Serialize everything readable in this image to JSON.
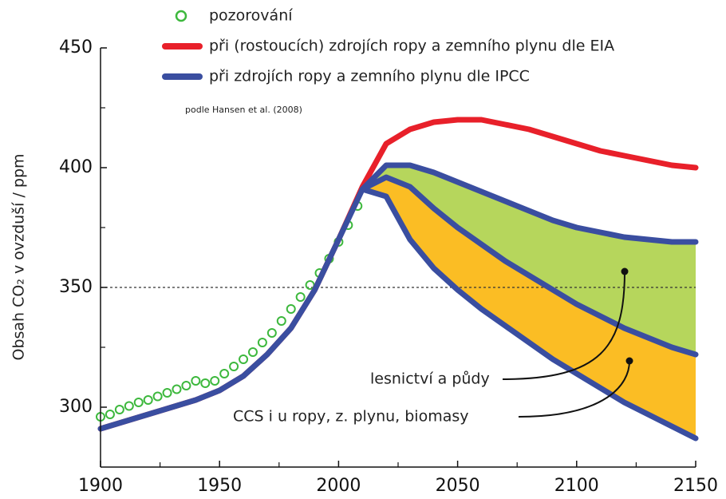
{
  "chart_data": {
    "type": "line",
    "note": "podle Hansen et al. (2008)",
    "ylabel": "Obsah CO₂ v ovzduší / ppm",
    "xlim": [
      1900,
      2150
    ],
    "xticks": [
      1900,
      1950,
      2000,
      2050,
      2100,
      2150
    ],
    "xminor_ticks": [
      1925,
      1975,
      2025,
      2075,
      2125
    ],
    "ylim": [
      275,
      450
    ],
    "yticks": [
      300,
      350,
      400,
      450
    ],
    "yminor_ticks": [
      325,
      375,
      425
    ],
    "hline": 350,
    "observations": {
      "name": "pozorování",
      "color": "#3db83d",
      "x": [
        1900,
        1904,
        1908,
        1912,
        1916,
        1920,
        1924,
        1928,
        1932,
        1936,
        1940,
        1944,
        1948,
        1952,
        1956,
        1960,
        1964,
        1968,
        1972,
        1976,
        1980,
        1984,
        1988,
        1992,
        1996,
        2000,
        2004,
        2008
      ],
      "values": [
        296,
        297,
        299,
        300.5,
        302,
        303,
        304.5,
        306,
        307.5,
        309,
        311,
        310,
        311,
        314,
        317,
        320,
        323,
        327,
        331,
        336,
        341,
        346,
        351,
        356,
        362,
        369,
        376,
        384
      ]
    },
    "x": [
      1900,
      1910,
      1920,
      1930,
      1940,
      1950,
      1960,
      1970,
      1980,
      1990,
      2000,
      2010,
      2020,
      2030,
      2040,
      2050,
      2060,
      2070,
      2080,
      2090,
      2100,
      2110,
      2120,
      2130,
      2140,
      2150
    ],
    "series": [
      {
        "name": "při (rostoucích) zdrojích ropy a zemního plynu dle EIA",
        "color": "#e8202a",
        "values": [
          291,
          294,
          297,
          300,
          303,
          307,
          313,
          322,
          333,
          349,
          370,
          392,
          410,
          416,
          419,
          420,
          420,
          418,
          416,
          413,
          410,
          407,
          405,
          403,
          401,
          400
        ]
      },
      {
        "name": "při zdrojích ropy a zemního plynu dle IPCC",
        "color": "#3a4ea0",
        "values": [
          291,
          294,
          297,
          300,
          303,
          307,
          313,
          322,
          333,
          349,
          370,
          391,
          401,
          401,
          398,
          394,
          390,
          386,
          382,
          378,
          375,
          373,
          371,
          370,
          369,
          369
        ]
      }
    ],
    "annotations": [
      {
        "text": "lesnictví a půdy",
        "color": "#3a4ea0",
        "fill": "#b6d65c",
        "values": [
          null,
          null,
          null,
          null,
          null,
          null,
          null,
          null,
          null,
          null,
          null,
          391,
          396,
          392,
          383,
          375,
          368,
          361,
          355,
          349,
          343,
          338,
          333,
          329,
          325,
          322
        ]
      },
      {
        "text": "CCS i u ropy, z. plynu, biomasy",
        "color": "#3a4ea0",
        "fill": "#fbbd24",
        "values": [
          null,
          null,
          null,
          null,
          null,
          null,
          null,
          null,
          null,
          null,
          null,
          391,
          388,
          370,
          358,
          349,
          341,
          334,
          327,
          320,
          314,
          308,
          302,
          297,
          292,
          287
        ]
      }
    ]
  }
}
